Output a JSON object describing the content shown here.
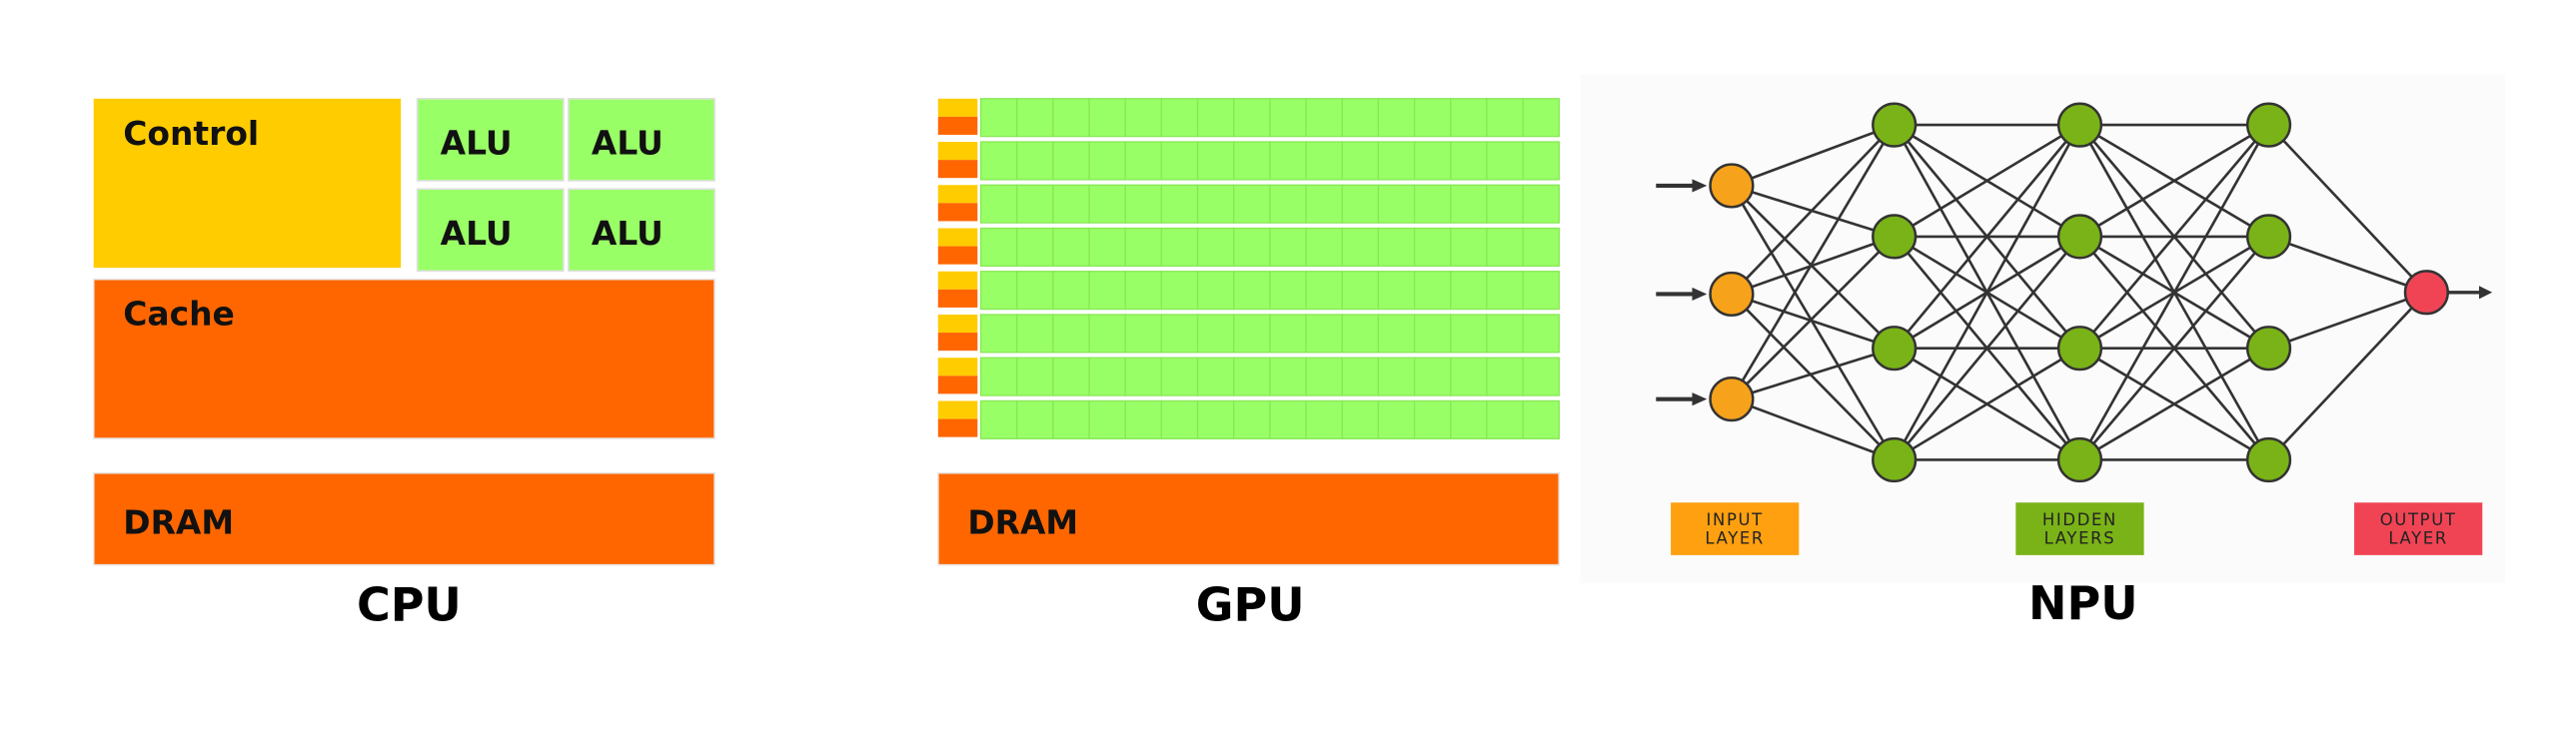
{
  "cpu": {
    "control": "Control",
    "alus": [
      "ALU",
      "ALU",
      "ALU",
      "ALU"
    ],
    "cache": "Cache",
    "dram": "DRAM",
    "label": "CPU"
  },
  "gpu": {
    "dram": "DRAM",
    "label": "GPU"
  },
  "npu": {
    "legend": [
      [
        "INPUT",
        "LAYER"
      ],
      [
        "HIDDEN",
        "LAYERS"
      ],
      [
        "OUTPUT",
        "LAYER"
      ]
    ],
    "label": "NPU"
  }
}
